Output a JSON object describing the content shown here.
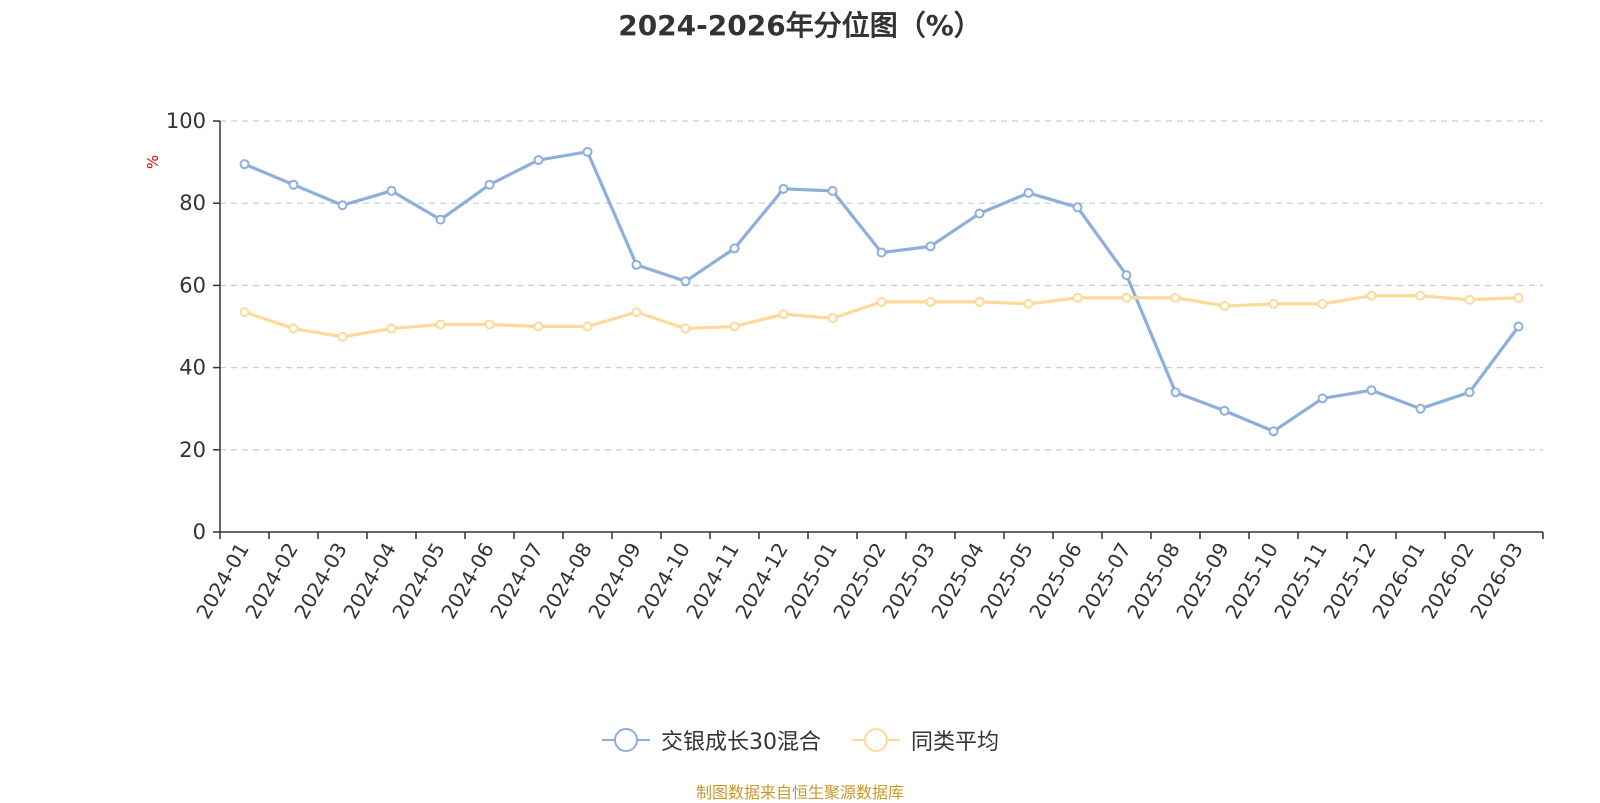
{
  "chart_data": {
    "type": "line",
    "title": "2024-2026年分位图（%）",
    "ylabel": "%",
    "ylim": [
      0,
      100
    ],
    "yticks": [
      "0",
      "20",
      "40",
      "60",
      "80",
      "100"
    ],
    "grid": true,
    "legend_position": "bottom",
    "categories": [
      "2024-01",
      "2024-02",
      "2024-03",
      "2024-04",
      "2024-05",
      "2024-06",
      "2024-07",
      "2024-08",
      "2024-09",
      "2024-10",
      "2024-11",
      "2024-12",
      "2025-01",
      "2025-02",
      "2025-03",
      "2025-04",
      "2025-05",
      "2025-06",
      "2025-07",
      "2025-08",
      "2025-09",
      "2025-10",
      "2025-11",
      "2025-12",
      "2026-01",
      "2026-02",
      "2026-03"
    ],
    "series": [
      {
        "name": "交银成长30混合",
        "color": "#8eaedb",
        "values": [
          89.5,
          84.5,
          79.5,
          83,
          76,
          84.5,
          90.5,
          92.5,
          65,
          61,
          69,
          83.5,
          83,
          68,
          69.5,
          77.5,
          82.5,
          79,
          62.5,
          34,
          29.5,
          24.5,
          32.5,
          34.5,
          30,
          34,
          50
        ]
      },
      {
        "name": "同类平均",
        "color": "#fdd99a",
        "values": [
          53.5,
          49.5,
          47.5,
          49.5,
          50.5,
          50.5,
          50,
          50,
          53.5,
          49.5,
          50,
          53,
          52,
          56,
          56,
          56,
          55.5,
          57,
          57,
          57,
          55,
          55.5,
          55.5,
          57.5,
          57.5,
          56.5,
          57
        ]
      }
    ]
  },
  "source": {
    "text": "制图数据来自恒生聚源数据库",
    "color": "#c89a2a"
  },
  "style": {
    "axis_color": "#333333",
    "grid_color": "#cccccc"
  }
}
